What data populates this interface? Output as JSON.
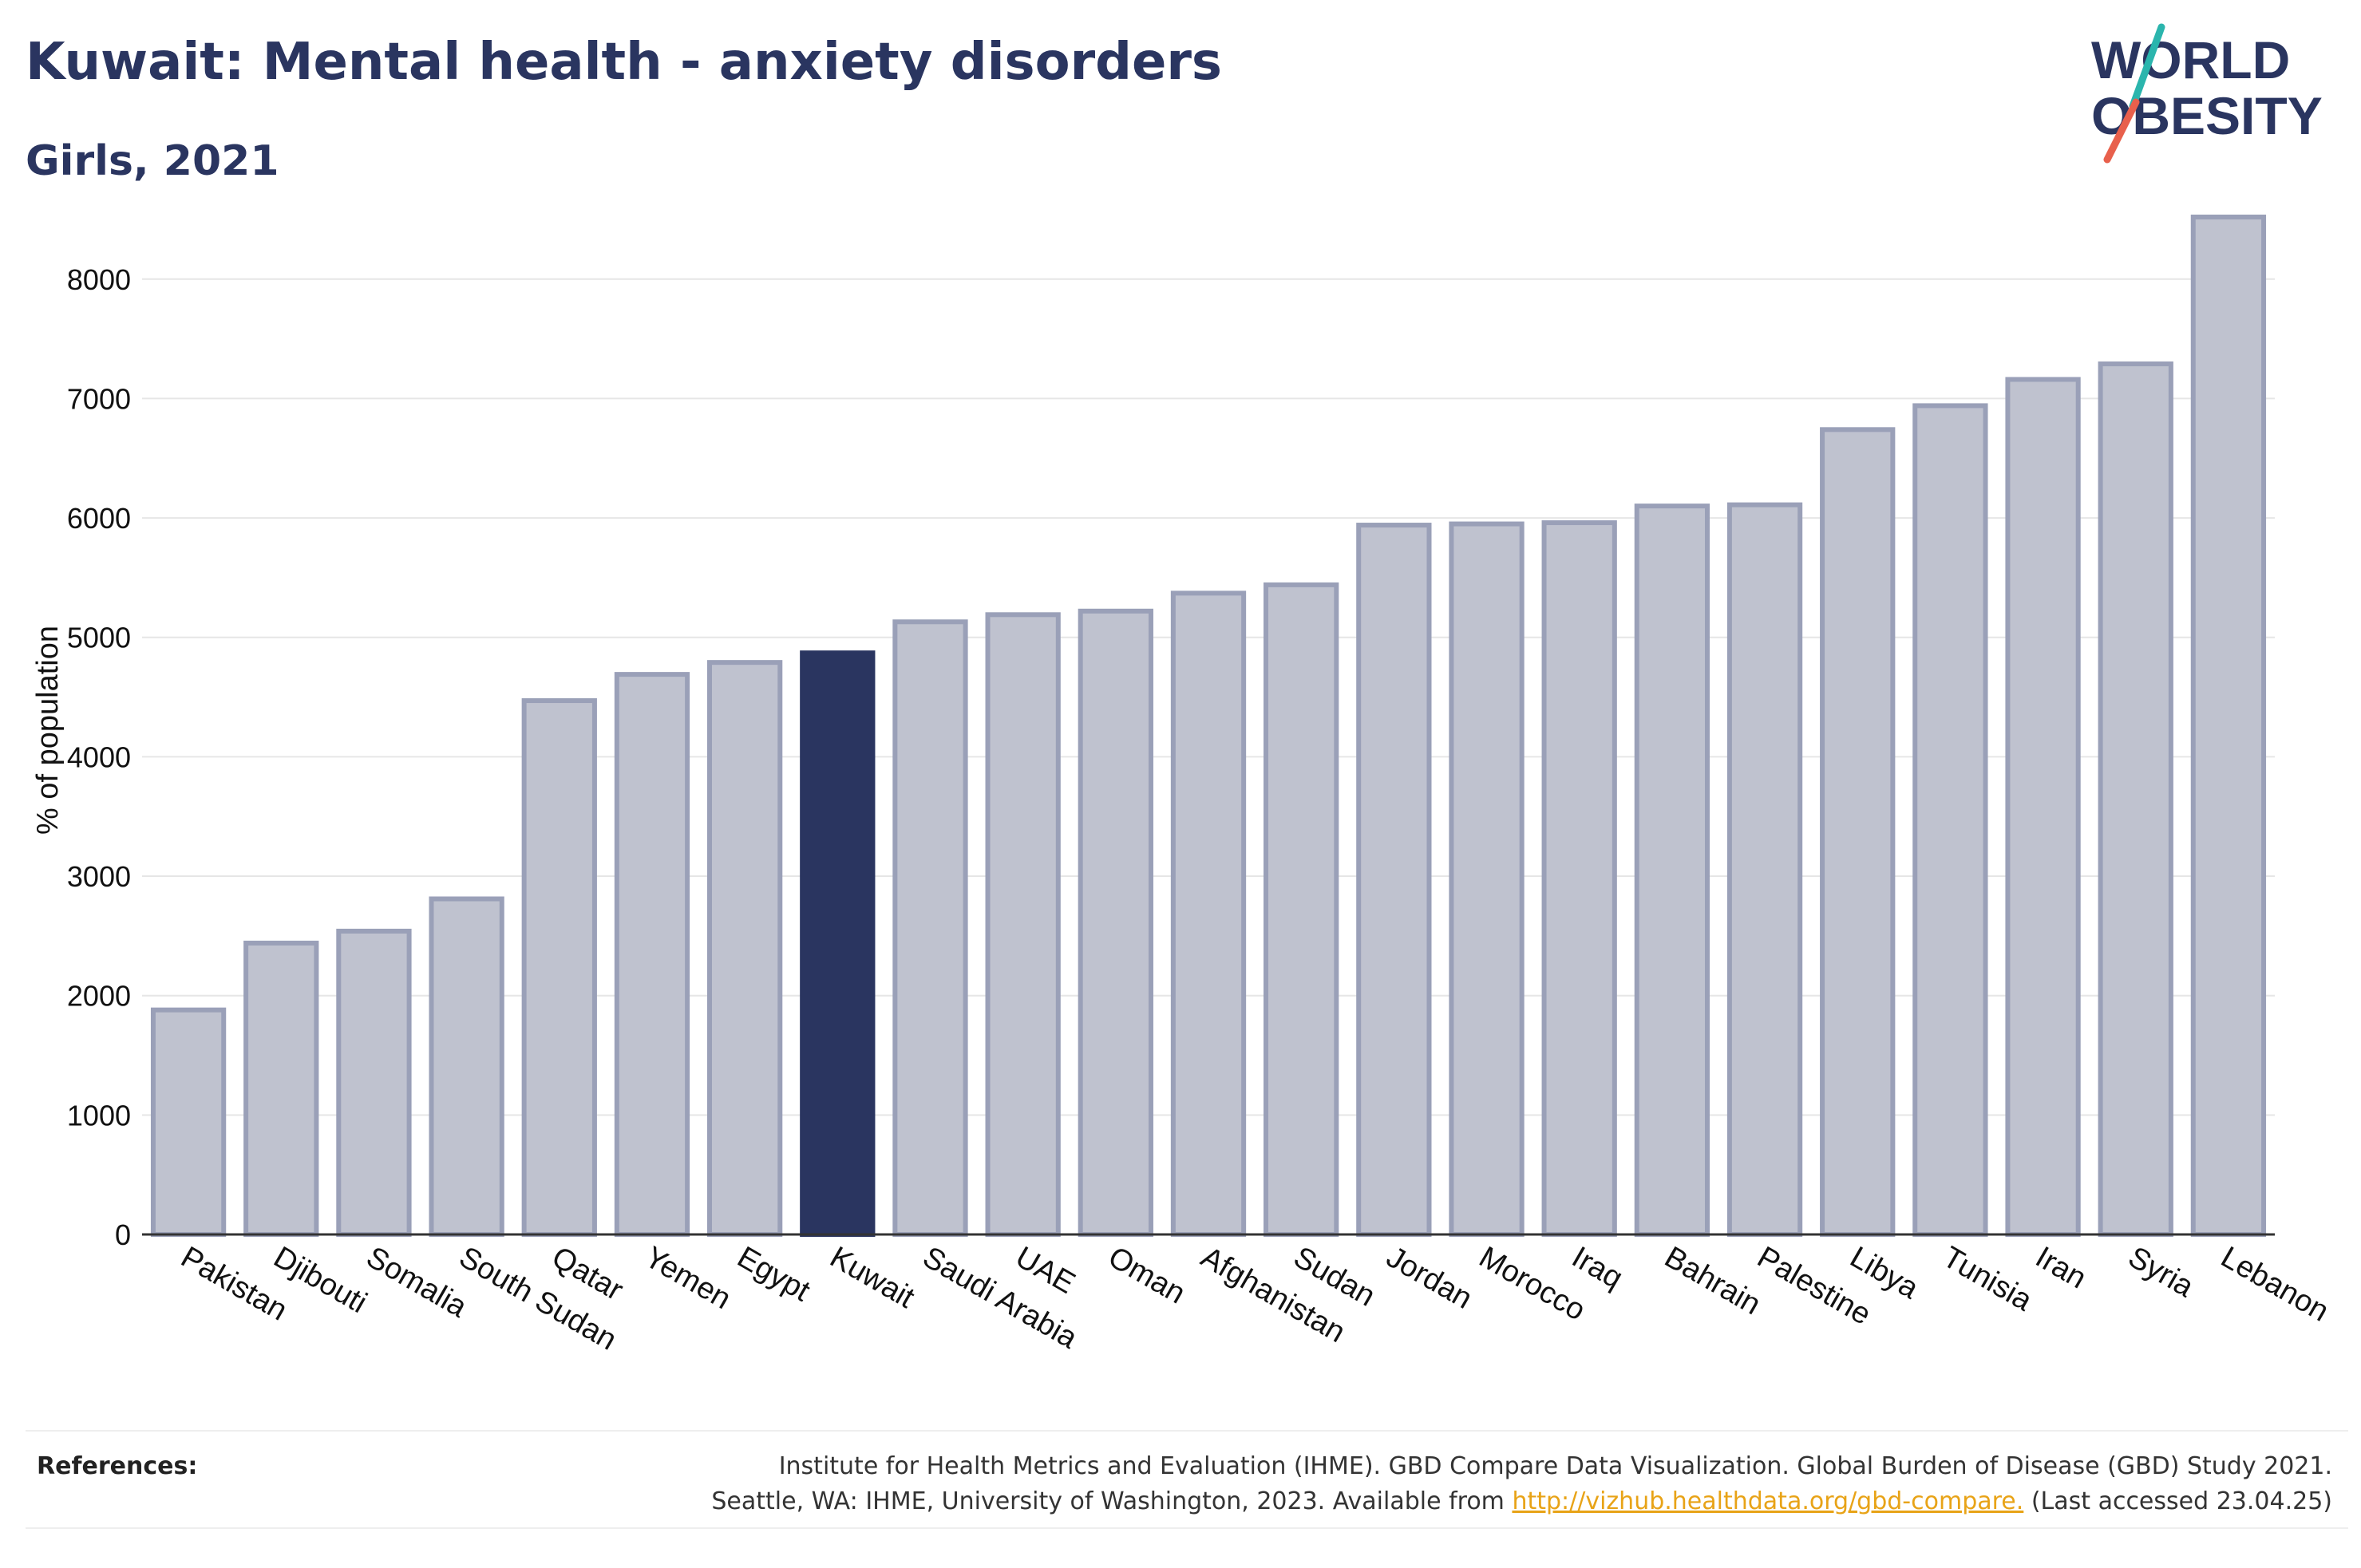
{
  "header": {
    "title": "Kuwait: Mental health - anxiety disorders",
    "subtitle": "Girls, 2021"
  },
  "logo": {
    "line1": "WORLD",
    "line2": "OBESITY",
    "accent_colors": [
      "#2bb5ad",
      "#e8604c"
    ]
  },
  "colors": {
    "highlight": "#2a3560",
    "bar_fill": "#bfc2cf",
    "bar_stroke": "#9aa0b8",
    "grid": "#e6e6e6"
  },
  "chart_data": {
    "type": "bar",
    "ylabel": "% of population",
    "xlabel": "",
    "ylim": [
      0,
      8700
    ],
    "yticks": [
      0,
      1000,
      2000,
      3000,
      4000,
      5000,
      6000,
      7000,
      8000
    ],
    "grid": true,
    "highlight_category": "Kuwait",
    "categories": [
      "Pakistan",
      "Djibouti",
      "Somalia",
      "South Sudan",
      "Qatar",
      "Yemen",
      "Egypt",
      "Kuwait",
      "Saudi Arabia",
      "UAE",
      "Oman",
      "Afghanistan",
      "Sudan",
      "Jordan",
      "Morocco",
      "Iraq",
      "Bahrain",
      "Palestine",
      "Libya",
      "Tunisia",
      "Iran",
      "Syria",
      "Lebanon"
    ],
    "values": [
      1880,
      2440,
      2540,
      2810,
      4470,
      4690,
      4790,
      4870,
      5130,
      5190,
      5220,
      5370,
      5440,
      5940,
      5950,
      5960,
      6100,
      6110,
      6740,
      6940,
      7160,
      7290,
      8520
    ]
  },
  "references": {
    "label": "References:",
    "line1": "Institute for Health Metrics and Evaluation (IHME). GBD Compare Data Visualization. Global Burden of Disease (GBD) Study 2021.",
    "line2_prefix": "Seattle, WA: IHME, University of Washington, 2023. Available from ",
    "link": "http://vizhub.healthdata.org/gbd-compare.",
    "line2_suffix": " (Last accessed 23.04.25)"
  }
}
